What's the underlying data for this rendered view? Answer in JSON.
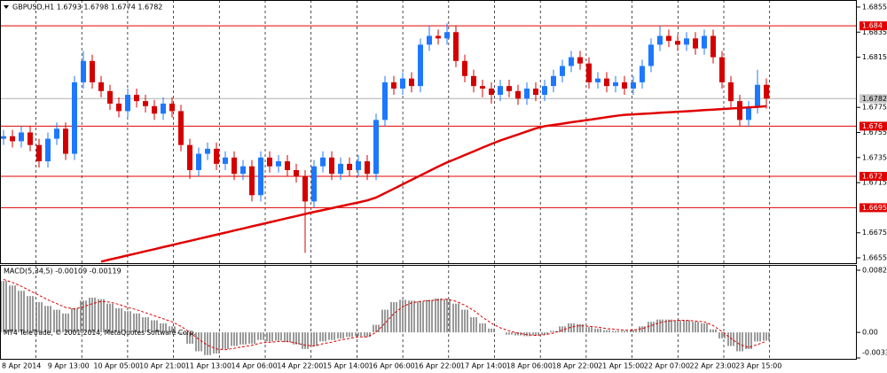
{
  "chart_data": [
    {
      "type": "candlestick",
      "title": "GBPUSD,H1  1.6793 1.6798 1.6774 1.6782",
      "footer": "MT4 TeleTrade, © 2001-2014, MetaQuotes Software Corp.",
      "up_color": "#1e78ff",
      "down_color": "#d40000",
      "ma_color": "#e00000",
      "level_color": "#e00000",
      "ylim": [
        1.66508,
        1.68592
      ],
      "yticks": [
        1.6855,
        1.6835,
        1.6815,
        1.6775,
        1.6755,
        1.6735,
        1.6715,
        1.6675,
        1.6655
      ],
      "levels": [
        1.684,
        1.676,
        1.672,
        1.6695
      ],
      "last_price": 1.6782,
      "xtick_labels": [
        "8 Apr 2014",
        "9 Apr 13:00",
        "10 Apr 05:00",
        "10 Apr 21:00",
        "11 Apr 13:00",
        "14 Apr 06:00",
        "14 Apr 22:00",
        "15 Apr 14:00",
        "16 Apr 06:00",
        "16 Apr 22:00",
        "17 Apr 14:00",
        "18 Apr 06:00",
        "18 Apr 22:00",
        "21 Apr 15:00",
        "22 Apr 07:00",
        "22 Apr 23:00",
        "23 Apr 15:00"
      ],
      "open": [
        1.675,
        1.6752,
        1.6748,
        1.6755,
        1.6745,
        1.6732,
        1.675,
        1.6758,
        1.6738,
        1.6795,
        1.6812,
        1.6795,
        1.6788,
        1.6778,
        1.6772,
        1.6785,
        1.678,
        1.6776,
        1.677,
        1.6778,
        1.6772,
        1.6745,
        1.6725,
        1.6738,
        1.6742,
        1.673,
        1.6735,
        1.6722,
        1.6728,
        1.6705,
        1.6735,
        1.6728,
        1.6732,
        1.6725,
        1.672,
        1.67,
        1.6728,
        1.6735,
        1.6722,
        1.673,
        1.6725,
        1.6732,
        1.6722,
        1.6765,
        1.6795,
        1.679,
        1.6798,
        1.6792,
        1.6825,
        1.6832,
        1.683,
        1.6835,
        1.6812,
        1.68,
        1.6792,
        1.679,
        1.6785,
        1.6792,
        1.6788,
        1.6782,
        1.679,
        1.6785,
        1.6792,
        1.68,
        1.6808,
        1.6815,
        1.681,
        1.6795,
        1.6798,
        1.6792,
        1.6795,
        1.679,
        1.6795,
        1.6808,
        1.6825,
        1.6832,
        1.6828,
        1.6825,
        1.683,
        1.6822,
        1.6832,
        1.6815,
        1.6795,
        1.678,
        1.6765,
        1.6775,
        1.6793
      ],
      "high": [
        1.6757,
        1.6757,
        1.676,
        1.676,
        1.675,
        1.6755,
        1.6763,
        1.6763,
        1.68,
        1.682,
        1.6817,
        1.68,
        1.6793,
        1.6783,
        1.679,
        1.679,
        1.6785,
        1.6781,
        1.6783,
        1.6783,
        1.6777,
        1.675,
        1.6743,
        1.6747,
        1.6747,
        1.674,
        1.674,
        1.6733,
        1.6733,
        1.674,
        1.674,
        1.6737,
        1.6737,
        1.673,
        1.6725,
        1.6733,
        1.674,
        1.674,
        1.6735,
        1.6735,
        1.6737,
        1.6737,
        1.677,
        1.68,
        1.68,
        1.6803,
        1.6803,
        1.683,
        1.684,
        1.6837,
        1.6842,
        1.684,
        1.6817,
        1.6805,
        1.6797,
        1.6795,
        1.6797,
        1.6797,
        1.6793,
        1.6795,
        1.6795,
        1.6797,
        1.6805,
        1.6813,
        1.682,
        1.682,
        1.6815,
        1.6803,
        1.6803,
        1.68,
        1.68,
        1.68,
        1.6813,
        1.683,
        1.684,
        1.6837,
        1.6833,
        1.6835,
        1.6835,
        1.6837,
        1.6837,
        1.682,
        1.68,
        1.6785,
        1.678,
        1.6805,
        1.6798
      ],
      "low": [
        1.6745,
        1.6743,
        1.6743,
        1.674,
        1.6727,
        1.6727,
        1.6745,
        1.6733,
        1.6733,
        1.679,
        1.679,
        1.6783,
        1.6773,
        1.6767,
        1.6767,
        1.6775,
        1.6771,
        1.6765,
        1.6765,
        1.6767,
        1.674,
        1.6718,
        1.672,
        1.6733,
        1.6725,
        1.6725,
        1.6717,
        1.6717,
        1.67,
        1.67,
        1.6723,
        1.6723,
        1.672,
        1.6715,
        1.6659,
        1.6695,
        1.6723,
        1.6717,
        1.6717,
        1.672,
        1.672,
        1.6717,
        1.6717,
        1.676,
        1.6785,
        1.6785,
        1.6787,
        1.6787,
        1.682,
        1.6825,
        1.6825,
        1.6807,
        1.6795,
        1.6787,
        1.6783,
        1.6778,
        1.678,
        1.6783,
        1.6777,
        1.6777,
        1.678,
        1.678,
        1.6787,
        1.6795,
        1.6803,
        1.6805,
        1.679,
        1.679,
        1.6787,
        1.6787,
        1.6785,
        1.6785,
        1.679,
        1.6803,
        1.682,
        1.6823,
        1.682,
        1.682,
        1.6817,
        1.6817,
        1.681,
        1.679,
        1.6775,
        1.676,
        1.676,
        1.677,
        1.6774
      ],
      "close": [
        1.6752,
        1.6748,
        1.6755,
        1.6745,
        1.6732,
        1.675,
        1.6758,
        1.6738,
        1.6795,
        1.6812,
        1.6795,
        1.6788,
        1.6778,
        1.6772,
        1.6785,
        1.678,
        1.6776,
        1.677,
        1.6778,
        1.6772,
        1.6745,
        1.6725,
        1.6738,
        1.6742,
        1.673,
        1.6735,
        1.6722,
        1.6728,
        1.6705,
        1.6735,
        1.6728,
        1.6732,
        1.6725,
        1.672,
        1.67,
        1.6728,
        1.6735,
        1.6722,
        1.673,
        1.6725,
        1.6732,
        1.6722,
        1.6765,
        1.6795,
        1.679,
        1.6798,
        1.6792,
        1.6825,
        1.6832,
        1.683,
        1.6835,
        1.6812,
        1.68,
        1.6792,
        1.679,
        1.6785,
        1.6792,
        1.6788,
        1.6782,
        1.679,
        1.6785,
        1.6792,
        1.68,
        1.6808,
        1.6815,
        1.681,
        1.6795,
        1.6798,
        1.6792,
        1.6795,
        1.679,
        1.6795,
        1.6808,
        1.6825,
        1.6832,
        1.6828,
        1.6825,
        1.683,
        1.6822,
        1.6832,
        1.6815,
        1.6795,
        1.678,
        1.6765,
        1.6775,
        1.6793,
        1.6782
      ],
      "ma_values": [
        null,
        null,
        null,
        null,
        null,
        null,
        null,
        null,
        null,
        null,
        null,
        1.6652,
        1.66537,
        1.66553,
        1.6657,
        1.66586,
        1.66603,
        1.66619,
        1.66636,
        1.66652,
        1.66669,
        1.66685,
        1.66702,
        1.66718,
        1.66735,
        1.66751,
        1.66768,
        1.66784,
        1.66801,
        1.66817,
        1.66834,
        1.6685,
        1.66867,
        1.66883,
        1.669,
        1.66916,
        1.66931,
        1.66946,
        1.66962,
        1.66977,
        1.66992,
        1.67008,
        1.67031,
        1.67066,
        1.67101,
        1.67137,
        1.67172,
        1.67207,
        1.67243,
        1.67278,
        1.67311,
        1.6734,
        1.6737,
        1.67399,
        1.67429,
        1.67458,
        1.67486,
        1.6751,
        1.67534,
        1.67558,
        1.67582,
        1.676,
        1.6761,
        1.6762,
        1.67631,
        1.67641,
        1.67651,
        1.67661,
        1.67672,
        1.67682,
        1.6769,
        1.67694,
        1.67698,
        1.67702,
        1.67707,
        1.67711,
        1.67715,
        1.67719,
        1.67723,
        1.67728,
        1.67732,
        1.67736,
        1.67741,
        1.67745,
        1.6775,
        1.67754,
        1.67759
      ]
    },
    {
      "type": "macd",
      "title": "MACD(5,34,5) -0.00109 -0.00119",
      "hist_color": "#808080",
      "signal_color": "#e00000",
      "ylim": [
        -0.00338,
        0.00822
      ],
      "yticks": [
        0.00822,
        {
          "value": 0,
          "label": "0.00"
        },
        -0.00338
      ],
      "values": [
        0.0068,
        0.0062,
        0.0055,
        0.0048,
        0.004,
        0.0035,
        0.003,
        0.0025,
        0.0032,
        0.0042,
        0.0046,
        0.0044,
        0.0038,
        0.0032,
        0.0028,
        0.0025,
        0.002,
        0.0016,
        0.0012,
        0.0008,
        -0.0002,
        -0.0015,
        -0.0025,
        -0.003,
        -0.0028,
        -0.0022,
        -0.0018,
        -0.0016,
        -0.0015,
        -0.001,
        -0.0012,
        -0.0011,
        -0.0013,
        -0.0016,
        -0.0022,
        -0.0018,
        -0.0012,
        -0.001,
        -0.0008,
        -0.0006,
        -0.0005,
        -0.0006,
        0.001,
        0.003,
        0.004,
        0.0043,
        0.0042,
        0.0041,
        0.0043,
        0.0045,
        0.0044,
        0.0038,
        0.003,
        0.002,
        0.0012,
        0.0005,
        0.0,
        -0.0003,
        -0.0004,
        -0.0005,
        -0.0004,
        -0.0003,
        0.0002,
        0.0008,
        0.0012,
        0.0011,
        0.0007,
        0.0005,
        0.0003,
        0.0002,
        0.0002,
        0.0003,
        0.0008,
        0.0014,
        0.0017,
        0.0017,
        0.0016,
        0.0016,
        0.0014,
        0.0012,
        0.0004,
        -0.0008,
        -0.0018,
        -0.0025,
        -0.0022,
        -0.0012,
        -0.00109
      ],
      "signal": [
        0.007,
        0.0066,
        0.0061,
        0.0055,
        0.0049,
        0.0043,
        0.0038,
        0.0033,
        0.0031,
        0.0034,
        0.0038,
        0.0041,
        0.004,
        0.0037,
        0.0033,
        0.003,
        0.0026,
        0.0022,
        0.0018,
        0.0014,
        0.0008,
        0.0,
        -0.0009,
        -0.0017,
        -0.0022,
        -0.0023,
        -0.0021,
        -0.0019,
        -0.0017,
        -0.0014,
        -0.0013,
        -0.0012,
        -0.0012,
        -0.0014,
        -0.0017,
        -0.0018,
        -0.0015,
        -0.0013,
        -0.001,
        -0.0008,
        -0.0006,
        -0.0006,
        0.0,
        0.0012,
        0.0025,
        0.0034,
        0.0039,
        0.0041,
        0.0042,
        0.0043,
        0.0044,
        0.0041,
        0.0036,
        0.0029,
        0.002,
        0.0012,
        0.0006,
        0.0002,
        -0.0001,
        -0.0003,
        -0.0004,
        -0.0003,
        -0.0001,
        0.0003,
        0.0007,
        0.0009,
        0.0008,
        0.0007,
        0.0005,
        0.0004,
        0.0003,
        0.0003,
        0.0005,
        0.0009,
        0.0013,
        0.0015,
        0.0016,
        0.0016,
        0.0015,
        0.0014,
        0.0009,
        0.0001,
        -0.0008,
        -0.0016,
        -0.002,
        -0.0016,
        -0.00119
      ]
    }
  ]
}
